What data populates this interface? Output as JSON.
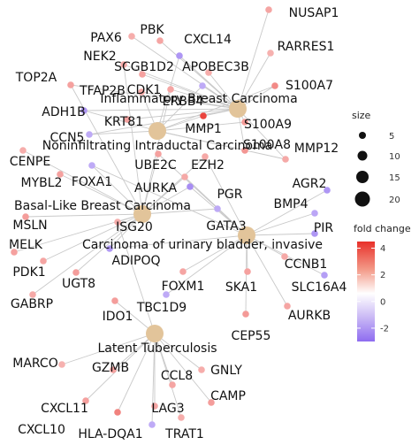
{
  "chart_data": {
    "type": "network",
    "title": "",
    "categories": [
      {
        "id": "breast",
        "label": "Inflammatory Breast Carcinoma",
        "count": 14
      },
      {
        "id": "nonin",
        "label": "Noninfiltrating Intraductal Carcinoma",
        "count": 9
      },
      {
        "id": "basal",
        "label": "Basal-Like Breast Carcinoma",
        "count": 13
      },
      {
        "id": "bladder",
        "label": "Carcinoma of urinary bladder, invasive",
        "count": 17
      },
      {
        "id": "latent",
        "label": "Latent Tuberculosis",
        "count": 13
      }
    ],
    "genes": [
      {
        "label": "NUSAP1",
        "fc": 1.5
      },
      {
        "label": "PAX6",
        "fc": 1.3
      },
      {
        "label": "PBK",
        "fc": 1.5
      },
      {
        "label": "CXCL14",
        "fc": -2.0
      },
      {
        "label": "RARRES1",
        "fc": 1.2
      },
      {
        "label": "NEK2",
        "fc": 1.4
      },
      {
        "label": "SCGB1D2",
        "fc": 1.6
      },
      {
        "label": "APOBEC3B",
        "fc": 1.3
      },
      {
        "label": "TOP2A",
        "fc": 1.6
      },
      {
        "label": "TFAP2B",
        "fc": 1.4
      },
      {
        "label": "CDK1",
        "fc": 1.5
      },
      {
        "label": "ERBB4",
        "fc": -1.5
      },
      {
        "label": "S100A7",
        "fc": 2.2
      },
      {
        "label": "ADH1B",
        "fc": -2.0
      },
      {
        "label": "KRT81",
        "fc": 1.6
      },
      {
        "label": "MMP1",
        "fc": 4.0
      },
      {
        "label": "S100A9",
        "fc": 1.8
      },
      {
        "label": "CCN5",
        "fc": -1.5
      },
      {
        "label": "CENPE",
        "fc": 1.3
      },
      {
        "label": "S100A8",
        "fc": 1.9
      },
      {
        "label": "MMP12",
        "fc": 1.4
      },
      {
        "label": "UBE2C",
        "fc": 1.6
      },
      {
        "label": "EZH2",
        "fc": 1.4
      },
      {
        "label": "MYBL2",
        "fc": 1.6
      },
      {
        "label": "FOXA1",
        "fc": -1.5
      },
      {
        "label": "AURKA",
        "fc": 1.4
      },
      {
        "label": "PGR",
        "fc": -2.2
      },
      {
        "label": "AGR2",
        "fc": -2.0
      },
      {
        "label": "BMP4",
        "fc": -1.6
      },
      {
        "label": "MSLN",
        "fc": 1.7
      },
      {
        "label": "ISG20",
        "fc": 1.3
      },
      {
        "label": "GATA3",
        "fc": -1.5
      },
      {
        "label": "PIR",
        "fc": -2.0
      },
      {
        "label": "MELK",
        "fc": 1.6
      },
      {
        "label": "ADIPOQ",
        "fc": -1.9
      },
      {
        "label": "PDK1",
        "fc": 1.5
      },
      {
        "label": "UGT8",
        "fc": 1.7
      },
      {
        "label": "CCNB1",
        "fc": 1.4
      },
      {
        "label": "FOXM1",
        "fc": 1.5
      },
      {
        "label": "SKA1",
        "fc": 1.6
      },
      {
        "label": "SLC16A4",
        "fc": -1.8
      },
      {
        "label": "GABRP",
        "fc": 1.4
      },
      {
        "label": "TBC1D9",
        "fc": -1.5
      },
      {
        "label": "AURKB",
        "fc": 1.5
      },
      {
        "label": "IDO1",
        "fc": 1.7
      },
      {
        "label": "CEP55",
        "fc": 1.8
      },
      {
        "label": "MARCO",
        "fc": 1.2
      },
      {
        "label": "GZMB",
        "fc": 1.6
      },
      {
        "label": "GNLY",
        "fc": 1.3
      },
      {
        "label": "CCL8",
        "fc": 1.5
      },
      {
        "label": "CAMP",
        "fc": 1.7
      },
      {
        "label": "CXCL11",
        "fc": 1.6
      },
      {
        "label": "LAG3",
        "fc": 1.5
      },
      {
        "label": "CXCL10",
        "fc": 2.4
      },
      {
        "label": "HLA-DQA1",
        "fc": -1.5
      },
      {
        "label": "TRAT1",
        "fc": 1.3
      }
    ],
    "legend": {
      "size": {
        "title": "size",
        "values": [
          "5",
          "10",
          "15",
          "20"
        ]
      },
      "color": {
        "title": "fold change",
        "ticks": [
          "4",
          "2",
          "0",
          "-2"
        ],
        "range": [
          -3,
          4.5
        ],
        "colors": {
          "high": "#e8302a",
          "mid": "#ffffff",
          "low": "#8e6cf0"
        }
      }
    },
    "colors": {
      "category_node": "#e2c49a",
      "edge": "#c9c9c9"
    }
  }
}
